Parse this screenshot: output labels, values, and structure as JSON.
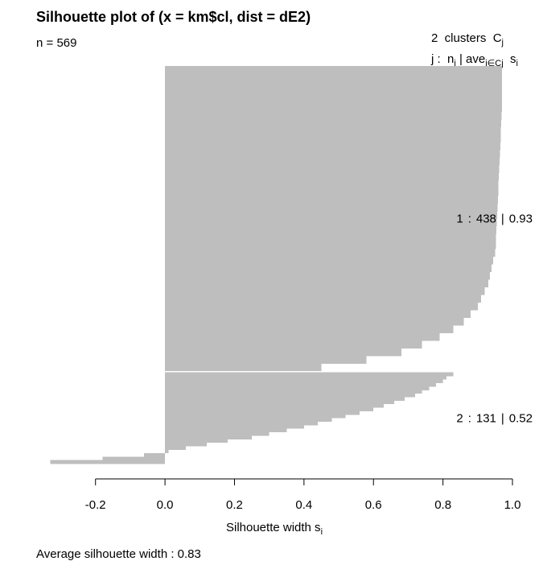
{
  "chart_data": {
    "type": "silhouette",
    "title": "Silhouette plot of (x = km$cl, dist = dE2)",
    "n_label": "n = ",
    "n": 569,
    "legend_header": {
      "line1": [
        "2  clusters  C",
        "j"
      ],
      "line2": [
        "j :  n",
        "j",
        " | ave",
        "i∈Cj",
        "  s",
        "i"
      ]
    },
    "row_separators": [
      ":",
      "|"
    ],
    "clusters": [
      {
        "name": "1",
        "n": 438,
        "ave": 0.93,
        "color": "#bebebe",
        "values": [
          0.97,
          0.97,
          0.97,
          0.97,
          0.97,
          0.97,
          0.969,
          0.968,
          0.967,
          0.966,
          0.965,
          0.964,
          0.963,
          0.962,
          0.961,
          0.96,
          0.959,
          0.958,
          0.957,
          0.956,
          0.955,
          0.954,
          0.953,
          0.952,
          0.95,
          0.945,
          0.94,
          0.935,
          0.93,
          0.92,
          0.91,
          0.9,
          0.88,
          0.86,
          0.83,
          0.79,
          0.74,
          0.68,
          0.58,
          0.45
        ]
      },
      {
        "name": "2",
        "n": 131,
        "ave": 0.52,
        "color": "#bebebe",
        "values": [
          0.83,
          0.81,
          0.8,
          0.78,
          0.76,
          0.74,
          0.72,
          0.69,
          0.66,
          0.63,
          0.6,
          0.56,
          0.52,
          0.48,
          0.44,
          0.4,
          0.35,
          0.3,
          0.25,
          0.18,
          0.12,
          0.06,
          0.01,
          -0.06,
          -0.18,
          -0.33
        ]
      }
    ],
    "xlabel": [
      "Silhouette width s",
      "i"
    ],
    "xlim": [
      -0.373,
      1.0
    ],
    "xticks": [
      {
        "value": -0.2,
        "label": "-0.2"
      },
      {
        "value": 0,
        "label": "0.0"
      },
      {
        "value": 0.2,
        "label": "0.2"
      },
      {
        "value": 0.4,
        "label": "0.4"
      },
      {
        "value": 0.6,
        "label": "0.6"
      },
      {
        "value": 0.8,
        "label": "0.8"
      },
      {
        "value": 1,
        "label": "1.0"
      }
    ],
    "footer_label": "Average silhouette width : ",
    "average": 0.83
  }
}
